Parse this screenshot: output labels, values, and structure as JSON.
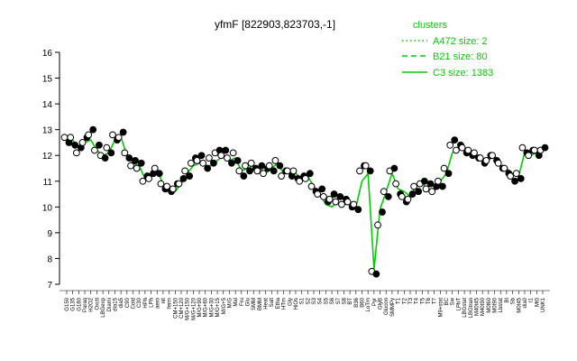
{
  "chart_data": {
    "type": "line",
    "title": "yfmF [822903,823703,-1]",
    "xlabel": "",
    "ylabel": "",
    "ylim": [
      7,
      16
    ],
    "yticks": [
      7,
      8,
      9,
      10,
      11,
      12,
      13,
      14,
      15,
      16
    ],
    "grid": false,
    "legend": {
      "title": "clusters",
      "position": "top-right",
      "entries": [
        {
          "label": "A472 size: 2",
          "style": "dotted"
        },
        {
          "label": "B21 size: 80",
          "style": "dashed"
        },
        {
          "label": "C3 size: 1383",
          "style": "solid"
        }
      ]
    },
    "series_color": "#00cc00",
    "marker_color": "#000000",
    "x_tick_labels": [
      "G150",
      "G135",
      "G180",
      "Paraq",
      "H2O2",
      "Oxctl",
      "LBGexp",
      "Diami",
      "dia15",
      "dia5",
      "C90",
      "Cold",
      "C30",
      "HPh",
      "LPh",
      "aero",
      "nit",
      "ferm",
      "CM+150",
      "CM+120",
      "M/G+150",
      "M/G+120",
      "M/G+90",
      "M/G+60",
      "M/G+30",
      "M/G+15",
      "M/G+5",
      "M/G",
      "Mal",
      "Fru",
      "Glu",
      "SMM",
      "BMM",
      "Heat",
      "Salt",
      "Etha",
      "HTm",
      "Gly",
      "HiOs",
      "S1",
      "S2",
      "S3",
      "S4",
      "S5",
      "S6",
      "S7",
      "S8",
      "BT",
      "B36",
      "B60",
      "LoTm",
      "Pyr",
      "GlyB",
      "Glucon",
      "SMMPy",
      "T1",
      "T2",
      "T3",
      "T4",
      "T5",
      "T6",
      "T7",
      "M9+stat",
      "BC",
      "Sw",
      "LPhT",
      "LBGstat",
      "LBGtran",
      "M40t45",
      "M40t90",
      "M0t60",
      "M0t90",
      "Lbstat",
      "BI",
      "Sb",
      "M0t45",
      "dia0",
      "t1",
      "Mt0",
      "UNK1"
    ],
    "series": [
      {
        "name": "C3 size: 1383",
        "values": [
          12.4,
          12.6,
          12.3,
          12.5,
          12.6,
          12.2,
          12.0,
          12.1,
          12.6,
          12.7,
          12.0,
          11.7,
          11.6,
          11.1,
          11.2,
          11.4,
          10.9,
          10.8,
          10.6,
          10.9,
          11.3,
          11.6,
          11.7,
          11.6,
          11.6,
          11.8,
          12.0,
          11.8,
          11.9,
          11.4,
          11.5,
          11.6,
          11.5,
          11.3,
          11.5,
          11.7,
          11.3,
          11.4,
          11.3,
          11.1,
          11.2,
          10.8,
          10.5,
          10.1,
          10.0,
          10.2,
          10.1,
          10.1,
          10.0,
          11.0,
          11.3,
          7.6,
          9.9,
          10.6,
          11.3,
          10.7,
          10.6,
          10.4,
          10.8,
          10.9,
          10.7,
          10.6,
          11.0,
          11.3,
          12.1,
          12.3,
          12.2,
          12.2,
          12.0,
          11.8,
          11.8,
          12.0,
          11.6,
          11.5,
          11.3,
          11.2,
          12.1,
          12.0,
          12.1,
          12.2
        ]
      }
    ],
    "points": [
      [
        12.7,
        12.5
      ],
      [
        12.7,
        12.4
      ],
      [
        12.1,
        12.3
      ],
      [
        12.5,
        12.7
      ],
      [
        12.8,
        13.0
      ],
      [
        12.2,
        12.4
      ],
      [
        12.0,
        11.9
      ],
      [
        12.3,
        12.1
      ],
      [
        12.8,
        12.6
      ],
      [
        12.7,
        12.9
      ],
      [
        12.1,
        11.9
      ],
      [
        11.6,
        11.8
      ],
      [
        11.5,
        11.7
      ],
      [
        11.0,
        11.2
      ],
      [
        11.1,
        11.3
      ],
      [
        11.5,
        11.3
      ],
      [
        10.9,
        10.7
      ],
      [
        10.8,
        10.6
      ],
      [
        10.7,
        10.9
      ],
      [
        10.9,
        11.1
      ],
      [
        11.4,
        11.2
      ],
      [
        11.7,
        11.9
      ],
      [
        11.8,
        12.0
      ],
      [
        11.7,
        11.5
      ],
      [
        11.9,
        11.7
      ],
      [
        12.1,
        12.2
      ],
      [
        12.0,
        12.2
      ],
      [
        11.9,
        11.7
      ],
      [
        12.1,
        11.8
      ],
      [
        11.4,
        11.2
      ],
      [
        11.6,
        11.4
      ],
      [
        11.7,
        11.5
      ],
      [
        11.4,
        11.6
      ],
      [
        11.3,
        11.5
      ],
      [
        11.6,
        11.4
      ],
      [
        11.8,
        11.6
      ],
      [
        11.2,
        11.4
      ],
      [
        11.4,
        11.2
      ],
      [
        11.4,
        11.1
      ],
      [
        11.0,
        11.2
      ],
      [
        11.1,
        11.3
      ],
      [
        10.8,
        10.6
      ],
      [
        10.5,
        10.7
      ],
      [
        10.4,
        10.2
      ],
      [
        10.3,
        10.5
      ],
      [
        10.2,
        10.4
      ],
      [
        10.1,
        10.3
      ],
      [
        10.2,
        10.0
      ],
      [
        10.1,
        9.9
      ],
      [
        11.4,
        11.6
      ],
      [
        11.6,
        11.4
      ],
      [
        7.5,
        7.4
      ],
      [
        9.3,
        9.8
      ],
      [
        10.6,
        10.4
      ],
      [
        11.4,
        11.5
      ],
      [
        10.9,
        10.5
      ],
      [
        10.4,
        10.2
      ],
      [
        10.3,
        10.5
      ],
      [
        10.8,
        10.6
      ],
      [
        10.9,
        11.0
      ],
      [
        10.7,
        10.9
      ],
      [
        10.6,
        10.8
      ],
      [
        11.0,
        10.8
      ],
      [
        11.5,
        11.3
      ],
      [
        12.4,
        12.6
      ],
      [
        12.2,
        12.4
      ],
      [
        12.3,
        12.1
      ],
      [
        12.2,
        12.0
      ],
      [
        12.1,
        11.9
      ],
      [
        11.9,
        11.7
      ],
      [
        11.8,
        12.0
      ],
      [
        12.0,
        11.8
      ],
      [
        11.7,
        11.5
      ],
      [
        11.5,
        11.3
      ],
      [
        11.2,
        11.0
      ],
      [
        11.3,
        11.1
      ],
      [
        12.3,
        12.1
      ],
      [
        12.0,
        12.2
      ],
      [
        12.2,
        12.0
      ],
      [
        12.2,
        12.3
      ]
    ]
  }
}
